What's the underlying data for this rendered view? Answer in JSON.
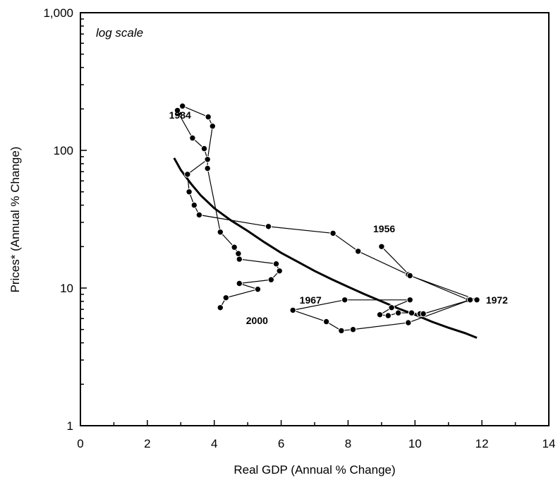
{
  "chart_data": {
    "type": "scatter",
    "y_scale": "log",
    "xlabel": "Real GDP (Annual % Change)",
    "ylabel": "Prices* (Annual % Change)",
    "scale_note": "log scale",
    "xlim": [
      0,
      14
    ],
    "ylim": [
      1,
      1000
    ],
    "x_ticks": [
      "0",
      "2",
      "4",
      "6",
      "8",
      "10",
      "12",
      "14"
    ],
    "y_ticks": [
      {
        "value": 1,
        "label": "1"
      },
      {
        "value": 10,
        "label": "10"
      },
      {
        "value": 100,
        "label": "100"
      },
      {
        "value": 1000,
        "label": "1,000"
      }
    ],
    "grid": false,
    "series": [
      {
        "style": "connected-points",
        "points": [
          [
            4.18,
            7.2
          ],
          [
            4.35,
            8.5
          ],
          [
            5.3,
            9.8
          ],
          [
            4.75,
            10.8
          ],
          [
            5.7,
            11.5
          ],
          [
            5.95,
            13.3
          ],
          [
            5.85,
            15.0
          ],
          [
            4.75,
            16.2
          ],
          [
            4.72,
            17.8
          ],
          [
            4.6,
            19.8
          ],
          [
            4.18,
            25.5
          ],
          [
            3.8,
            74.0
          ],
          [
            3.8,
            86.0
          ],
          [
            3.7,
            103.0
          ],
          [
            3.35,
            123.0
          ],
          [
            2.93,
            186.0
          ],
          [
            2.9,
            195.0
          ],
          [
            3.05,
            210.0
          ],
          [
            3.82,
            175.0
          ],
          [
            3.95,
            150.0
          ],
          [
            3.8,
            86.0
          ],
          [
            3.2,
            67.0
          ],
          [
            3.25,
            50.0
          ],
          [
            3.4,
            40.0
          ],
          [
            3.55,
            34.0
          ],
          [
            5.62,
            28.0
          ],
          [
            7.55,
            25.0
          ],
          [
            8.3,
            18.5
          ],
          [
            9.8,
            12.5
          ],
          [
            11.6,
            8.2
          ],
          [
            11.85,
            8.2
          ],
          [
            9.85,
            12.3
          ],
          [
            9.0,
            20.0
          ]
        ]
      },
      {
        "style": "connected-points",
        "points": [
          [
            6.35,
            6.9
          ],
          [
            7.9,
            8.2
          ],
          [
            9.85,
            8.2
          ],
          [
            9.3,
            7.2
          ],
          [
            8.95,
            6.4
          ],
          [
            9.2,
            6.3
          ],
          [
            9.5,
            6.6
          ],
          [
            9.9,
            6.6
          ],
          [
            10.15,
            6.5
          ],
          [
            10.25,
            6.5
          ],
          [
            11.65,
            8.2
          ],
          [
            9.8,
            5.6
          ],
          [
            8.15,
            5.0
          ],
          [
            7.8,
            4.9
          ],
          [
            7.35,
            5.7
          ],
          [
            6.35,
            6.9
          ]
        ]
      }
    ],
    "trend_line": {
      "style": "thick-curve",
      "points": [
        [
          2.8,
          88.0
        ],
        [
          3.0,
          72.0
        ],
        [
          3.3,
          57.5
        ],
        [
          3.6,
          47.0
        ],
        [
          4.0,
          38.0
        ],
        [
          4.5,
          31.0
        ],
        [
          5.0,
          26.0
        ],
        [
          5.5,
          21.5
        ],
        [
          6.0,
          18.0
        ],
        [
          6.5,
          15.5
        ],
        [
          7.0,
          13.3
        ],
        [
          7.5,
          11.6
        ],
        [
          8.0,
          10.2
        ],
        [
          8.5,
          9.0
        ],
        [
          9.0,
          8.0
        ],
        [
          9.5,
          7.1
        ],
        [
          10.0,
          6.4
        ],
        [
          10.5,
          5.7
        ],
        [
          11.0,
          5.15
        ],
        [
          11.5,
          4.7
        ],
        [
          11.85,
          4.35
        ]
      ]
    },
    "annotations": [
      {
        "text": "1984",
        "x": 2.65,
        "y": 180
      },
      {
        "text": "1956",
        "x": 8.75,
        "y": 27
      },
      {
        "text": "1972",
        "x": 12.12,
        "y": 8.2
      },
      {
        "text": "1967",
        "x": 6.55,
        "y": 8.2
      },
      {
        "text": "2000",
        "x": 4.95,
        "y": 5.8
      }
    ]
  }
}
